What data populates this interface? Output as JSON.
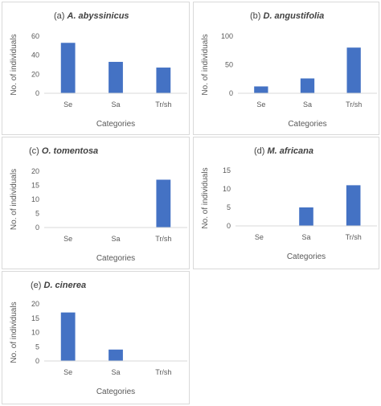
{
  "chart_data": [
    {
      "type": "bar",
      "title_prefix": "(a)",
      "title_species": "A. abyssinicus",
      "categories": [
        "Se",
        "Sa",
        "Tr/sh"
      ],
      "values": [
        53,
        33,
        27
      ],
      "ylim": [
        0,
        60
      ],
      "yticks": [
        0,
        20,
        40,
        60
      ],
      "xlabel": "Categories",
      "ylabel": "No. of individuals",
      "bar_color": "#4472c4",
      "grid": false,
      "legend": "none"
    },
    {
      "type": "bar",
      "title_prefix": "(b)",
      "title_species": "D. angustifolia",
      "categories": [
        "Se",
        "Sa",
        "Tr/sh"
      ],
      "values": [
        12,
        26,
        80
      ],
      "ylim": [
        0,
        100
      ],
      "yticks": [
        0,
        50,
        100
      ],
      "xlabel": "Categories",
      "ylabel": "No. of individuals",
      "bar_color": "#4472c4",
      "grid": false,
      "legend": "none"
    },
    {
      "type": "bar",
      "title_prefix": "(c)",
      "title_species": "O. tomentosa",
      "categories": [
        "Se",
        "Sa",
        "Tr/sh"
      ],
      "values": [
        0,
        0,
        17
      ],
      "ylim": [
        0,
        20
      ],
      "yticks": [
        0,
        5,
        10,
        15,
        20
      ],
      "xlabel": "Categories",
      "ylabel": "No. of individuals",
      "bar_color": "#4472c4",
      "grid": false,
      "legend": "none"
    },
    {
      "type": "bar",
      "title_prefix": "(d)",
      "title_species": "M. africana",
      "categories": [
        "Se",
        "Sa",
        "Tr/sh"
      ],
      "values": [
        0,
        5,
        11
      ],
      "ylim": [
        0,
        15
      ],
      "yticks": [
        0,
        5,
        10,
        15
      ],
      "xlabel": "Categories",
      "ylabel": "No. of individuals",
      "bar_color": "#4472c4",
      "grid": false,
      "legend": "none"
    },
    {
      "type": "bar",
      "title_prefix": "(e)",
      "title_species": "D. cinerea",
      "categories": [
        "Se",
        "Sa",
        "Tr/sh"
      ],
      "values": [
        17,
        4,
        0
      ],
      "ylim": [
        0,
        20
      ],
      "yticks": [
        0,
        5,
        10,
        15,
        20
      ],
      "xlabel": "Categories",
      "ylabel": "No. of individuals",
      "bar_color": "#4472c4",
      "grid": false,
      "legend": "none"
    }
  ]
}
